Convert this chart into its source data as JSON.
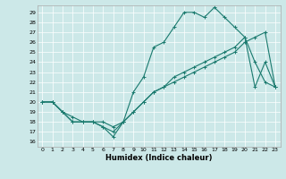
{
  "xlabel": "Humidex (Indice chaleur)",
  "bg_color": "#cce8e8",
  "line_color": "#1a7a6e",
  "xlim": [
    -0.5,
    23.5
  ],
  "ylim": [
    15.5,
    29.7
  ],
  "yticks": [
    16,
    17,
    18,
    19,
    20,
    21,
    22,
    23,
    24,
    25,
    26,
    27,
    28,
    29
  ],
  "xticks": [
    0,
    1,
    2,
    3,
    4,
    5,
    6,
    7,
    8,
    9,
    10,
    11,
    12,
    13,
    14,
    15,
    16,
    17,
    18,
    19,
    20,
    21,
    22,
    23
  ],
  "line1_x": [
    0,
    1,
    2,
    3,
    4,
    5,
    6,
    7,
    8,
    9,
    10,
    11,
    12,
    13,
    14,
    15,
    16,
    17,
    18,
    19,
    20,
    21,
    22,
    23
  ],
  "line1_y": [
    20.0,
    20.0,
    19.0,
    18.0,
    18.0,
    18.0,
    17.5,
    16.5,
    18.0,
    21.0,
    22.5,
    25.5,
    26.0,
    27.5,
    29.0,
    29.0,
    28.5,
    29.5,
    28.5,
    27.5,
    26.5,
    24.0,
    22.0,
    21.5
  ],
  "line2_x": [
    0,
    1,
    2,
    3,
    4,
    5,
    6,
    7,
    8,
    9,
    10,
    11,
    12,
    13,
    14,
    15,
    16,
    17,
    18,
    19,
    20,
    21,
    22,
    23
  ],
  "line2_y": [
    20.0,
    20.0,
    19.0,
    18.5,
    18.0,
    18.0,
    18.0,
    17.5,
    18.0,
    19.0,
    20.0,
    21.0,
    21.5,
    22.5,
    23.0,
    23.5,
    24.0,
    24.5,
    25.0,
    25.5,
    26.5,
    21.5,
    24.0,
    21.5
  ],
  "line3_x": [
    0,
    1,
    2,
    3,
    4,
    5,
    6,
    7,
    8,
    9,
    10,
    11,
    12,
    13,
    14,
    15,
    16,
    17,
    18,
    19,
    20,
    21,
    22,
    23
  ],
  "line3_y": [
    20.0,
    20.0,
    19.0,
    18.0,
    18.0,
    18.0,
    17.5,
    17.0,
    18.0,
    19.0,
    20.0,
    21.0,
    21.5,
    22.0,
    22.5,
    23.0,
    23.5,
    24.0,
    24.5,
    25.0,
    26.0,
    26.5,
    27.0,
    21.5
  ],
  "marker": "+",
  "markersize": 3,
  "linewidth": 0.8
}
